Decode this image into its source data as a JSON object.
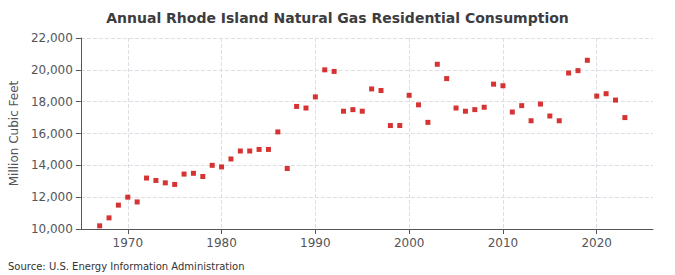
{
  "chart_data": {
    "type": "scatter",
    "title": "Annual Rhode Island Natural Gas Residential Consumption",
    "ylabel": "Million Cubic Feet",
    "annotation": "Source: U.S. Energy Information Administration",
    "color": "#cc0000",
    "marker": "square",
    "grid": true,
    "xlim": [
      1965,
      2026
    ],
    "xticks": [
      1970,
      1980,
      1990,
      2000,
      2010,
      2020
    ],
    "ylim": [
      10000,
      22000
    ],
    "yticks": [
      {
        "value": 10000,
        "label": "10,000"
      },
      {
        "value": 12000,
        "label": "12,000"
      },
      {
        "value": 14000,
        "label": "14,000"
      },
      {
        "value": 16000,
        "label": "16,000"
      },
      {
        "value": 18000,
        "label": "18,000"
      },
      {
        "value": 20000,
        "label": "20,000"
      },
      {
        "value": 22000,
        "label": "22,000"
      }
    ],
    "x": [
      1967,
      1968,
      1969,
      1970,
      1971,
      1972,
      1973,
      1974,
      1975,
      1976,
      1977,
      1978,
      1979,
      1980,
      1981,
      1982,
      1983,
      1984,
      1985,
      1986,
      1987,
      1988,
      1989,
      1990,
      1991,
      1992,
      1993,
      1994,
      1995,
      1996,
      1997,
      1998,
      1999,
      2000,
      2001,
      2002,
      2003,
      2004,
      2005,
      2006,
      2007,
      2008,
      2009,
      2010,
      2011,
      2012,
      2013,
      2014,
      2015,
      2016,
      2017,
      2018,
      2019,
      2020,
      2021,
      2022,
      2023
    ],
    "values": [
      10200,
      10700,
      11500,
      12000,
      11700,
      13200,
      13050,
      12900,
      12800,
      13450,
      13500,
      13300,
      14000,
      13900,
      14400,
      14900,
      14900,
      15000,
      15000,
      16100,
      13800,
      17700,
      17600,
      18300,
      20000,
      19900,
      17400,
      17500,
      17400,
      18800,
      18700,
      16500,
      16500,
      18400,
      17800,
      16700,
      20350,
      19450,
      17600,
      17400,
      17500,
      17650,
      19100,
      19000,
      17350,
      17750,
      16800,
      17850,
      17100,
      16800,
      19800,
      19950,
      20600,
      18350,
      18500,
      18100,
      17000
    ]
  }
}
